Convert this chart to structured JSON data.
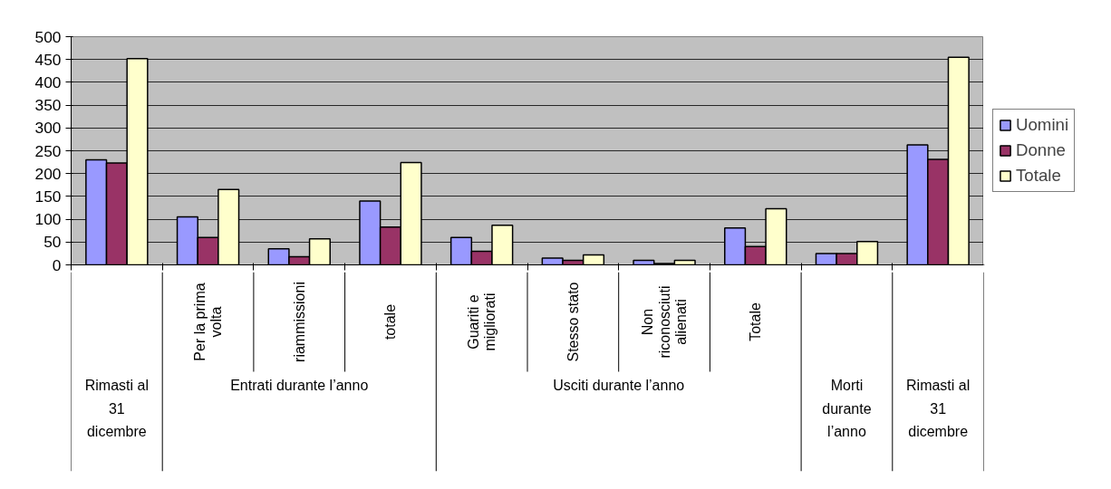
{
  "chart_data": {
    "type": "bar",
    "categories": [
      null,
      "Per la prima volta",
      "riammissioni",
      "totale",
      "Guariti e migliorati",
      "Stesso stato",
      "Non riconosciuti alienati",
      "Totale",
      null,
      null
    ],
    "series": [
      {
        "name": "Uomini",
        "color": "#9999ff",
        "values": [
          230,
          105,
          35,
          140,
          60,
          15,
          10,
          81,
          25,
          263
        ]
      },
      {
        "name": "Donne",
        "color": "#993366",
        "values": [
          223,
          60,
          18,
          83,
          30,
          10,
          3,
          40,
          25,
          231
        ]
      },
      {
        "name": "Totale",
        "color": "#ffffcc",
        "values": [
          452,
          165,
          57,
          224,
          87,
          22,
          10,
          123,
          51,
          455
        ]
      }
    ],
    "annotations": [
      "Rimasti al 31 dicembre",
      "Entrati durante l’anno",
      "Usciti durante l’anno",
      "Morti durante l’anno",
      "Rimasti al 31 dicembre"
    ],
    "ylim": [
      0,
      500
    ],
    "yticks": [
      0,
      50,
      100,
      150,
      200,
      250,
      300,
      350,
      400,
      450,
      500
    ],
    "grid": "y",
    "legend": "right"
  }
}
